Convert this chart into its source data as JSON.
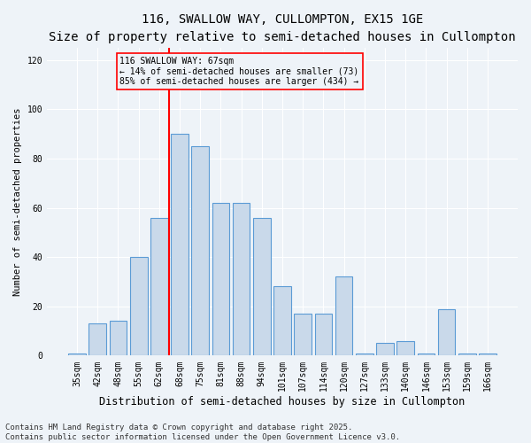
{
  "title": "116, SWALLOW WAY, CULLOMPTON, EX15 1GE",
  "subtitle": "Size of property relative to semi-detached houses in Cullompton",
  "xlabel": "Distribution of semi-detached houses by size in Cullompton",
  "ylabel": "Number of semi-detached properties",
  "footnote1": "Contains HM Land Registry data © Crown copyright and database right 2025.",
  "footnote2": "Contains public sector information licensed under the Open Government Licence v3.0.",
  "bar_labels": [
    "35sqm",
    "42sqm",
    "48sqm",
    "55sqm",
    "62sqm",
    "68sqm",
    "75sqm",
    "81sqm",
    "88sqm",
    "94sqm",
    "101sqm",
    "107sqm",
    "114sqm",
    "120sqm",
    "127sqm",
    "133sqm",
    "140sqm",
    "146sqm",
    "153sqm",
    "159sqm",
    "166sqm"
  ],
  "bar_values": [
    1,
    13,
    14,
    40,
    56,
    90,
    85,
    62,
    62,
    56,
    28,
    17,
    17,
    32,
    1,
    5,
    6,
    1,
    19,
    1,
    1
  ],
  "bar_color": "#c9d9ea",
  "bar_edge_color": "#5b9bd5",
  "annotation_line_color": "red",
  "annotation_box_text": "116 SWALLOW WAY: 67sqm\n← 14% of semi-detached houses are smaller (73)\n85% of semi-detached houses are larger (434) →",
  "ylim": [
    0,
    125
  ],
  "yticks": [
    0,
    20,
    40,
    60,
    80,
    100,
    120
  ],
  "bg_color": "#eef3f8",
  "grid_color": "white",
  "title_fontsize": 10,
  "subtitle_fontsize": 8.5,
  "xlabel_fontsize": 8.5,
  "ylabel_fontsize": 7.5,
  "tick_fontsize": 7,
  "annotation_fontsize": 7,
  "footnote_fontsize": 6.5
}
